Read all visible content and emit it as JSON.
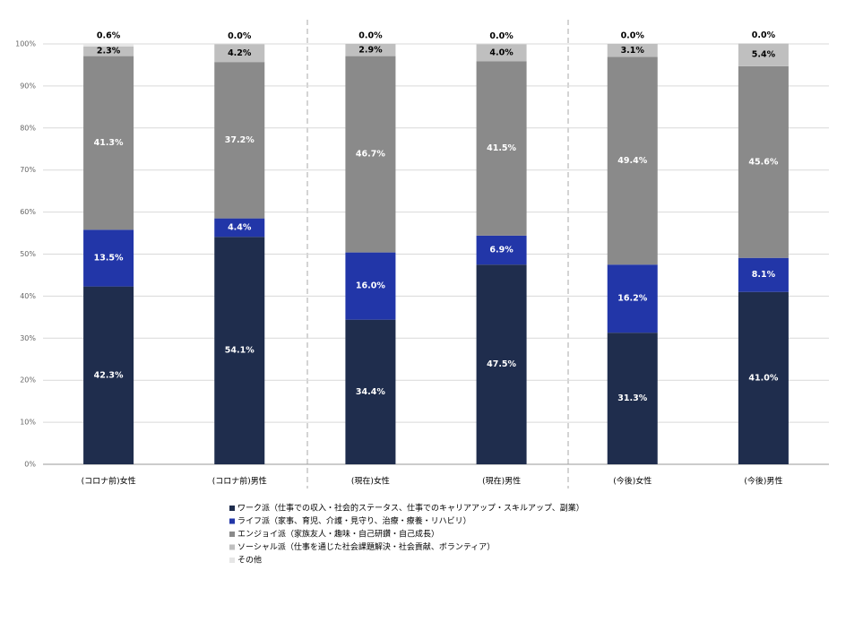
{
  "chart_data": {
    "type": "stacked_bar",
    "categories": [
      "(コロナ前)女性",
      "(コロナ前)男性",
      "(現在)女性",
      "(現在)男性",
      "(今後)女性",
      "(今後)男性"
    ],
    "series": [
      {
        "name": "ワーク派（仕事での収入・社会的ステータス、仕事でのキャリアアップ・スキルアップ、副業）",
        "color": "#1f2d4d",
        "values": [
          42.3,
          54.1,
          34.4,
          47.5,
          31.3,
          41.0
        ],
        "value_labels": [
          "42.3%",
          "54.1%",
          "34.4%",
          "47.5%",
          "31.3%",
          "41.0%"
        ]
      },
      {
        "name": "ライフ派（家事、育児、介護・見守り、治療・療養・リハビリ）",
        "color": "#2236a8",
        "values": [
          13.5,
          4.4,
          16.0,
          6.9,
          16.2,
          8.1
        ],
        "value_labels": [
          "13.5%",
          "4.4%",
          "16.0%",
          "6.9%",
          "16.2%",
          "8.1%"
        ]
      },
      {
        "name": "エンジョイ派（家族友人・趣味・自己研鑽・自己成長）",
        "color": "#8a8a8a",
        "values": [
          41.3,
          37.2,
          46.7,
          41.5,
          49.4,
          45.6
        ],
        "value_labels": [
          "41.3%",
          "37.2%",
          "46.7%",
          "41.5%",
          "49.4%",
          "45.6%"
        ]
      },
      {
        "name": "ソーシャル派（仕事を通じた社会課題解決・社会貢献、ボランティア）",
        "color": "#bfbfbf",
        "values": [
          2.3,
          4.2,
          2.9,
          4.0,
          3.1,
          5.4
        ],
        "value_labels": [
          "2.3%",
          "4.2%",
          "2.9%",
          "4.0%",
          "3.1%",
          "5.4%"
        ]
      },
      {
        "name": "その他",
        "color": "#e6e6e6",
        "values": [
          0.6,
          0.0,
          0.0,
          0.0,
          0.0,
          0.0
        ],
        "value_labels": [
          "0.6%",
          "0.0%",
          "0.0%",
          "0.0%",
          "0.0%",
          "0.0%"
        ]
      }
    ],
    "ylim": [
      0,
      100
    ],
    "yticks": [
      {
        "value": 0,
        "label": "0%"
      },
      {
        "value": 10,
        "label": "10%"
      },
      {
        "value": 20,
        "label": "20%"
      },
      {
        "value": 30,
        "label": "30%"
      },
      {
        "value": 40,
        "label": "40%"
      },
      {
        "value": 50,
        "label": "50%"
      },
      {
        "value": 60,
        "label": "60%"
      },
      {
        "value": 70,
        "label": "70%"
      },
      {
        "value": 80,
        "label": "80%"
      },
      {
        "value": 90,
        "label": "90%"
      },
      {
        "value": 100,
        "label": "100%"
      }
    ],
    "grid": true
  }
}
